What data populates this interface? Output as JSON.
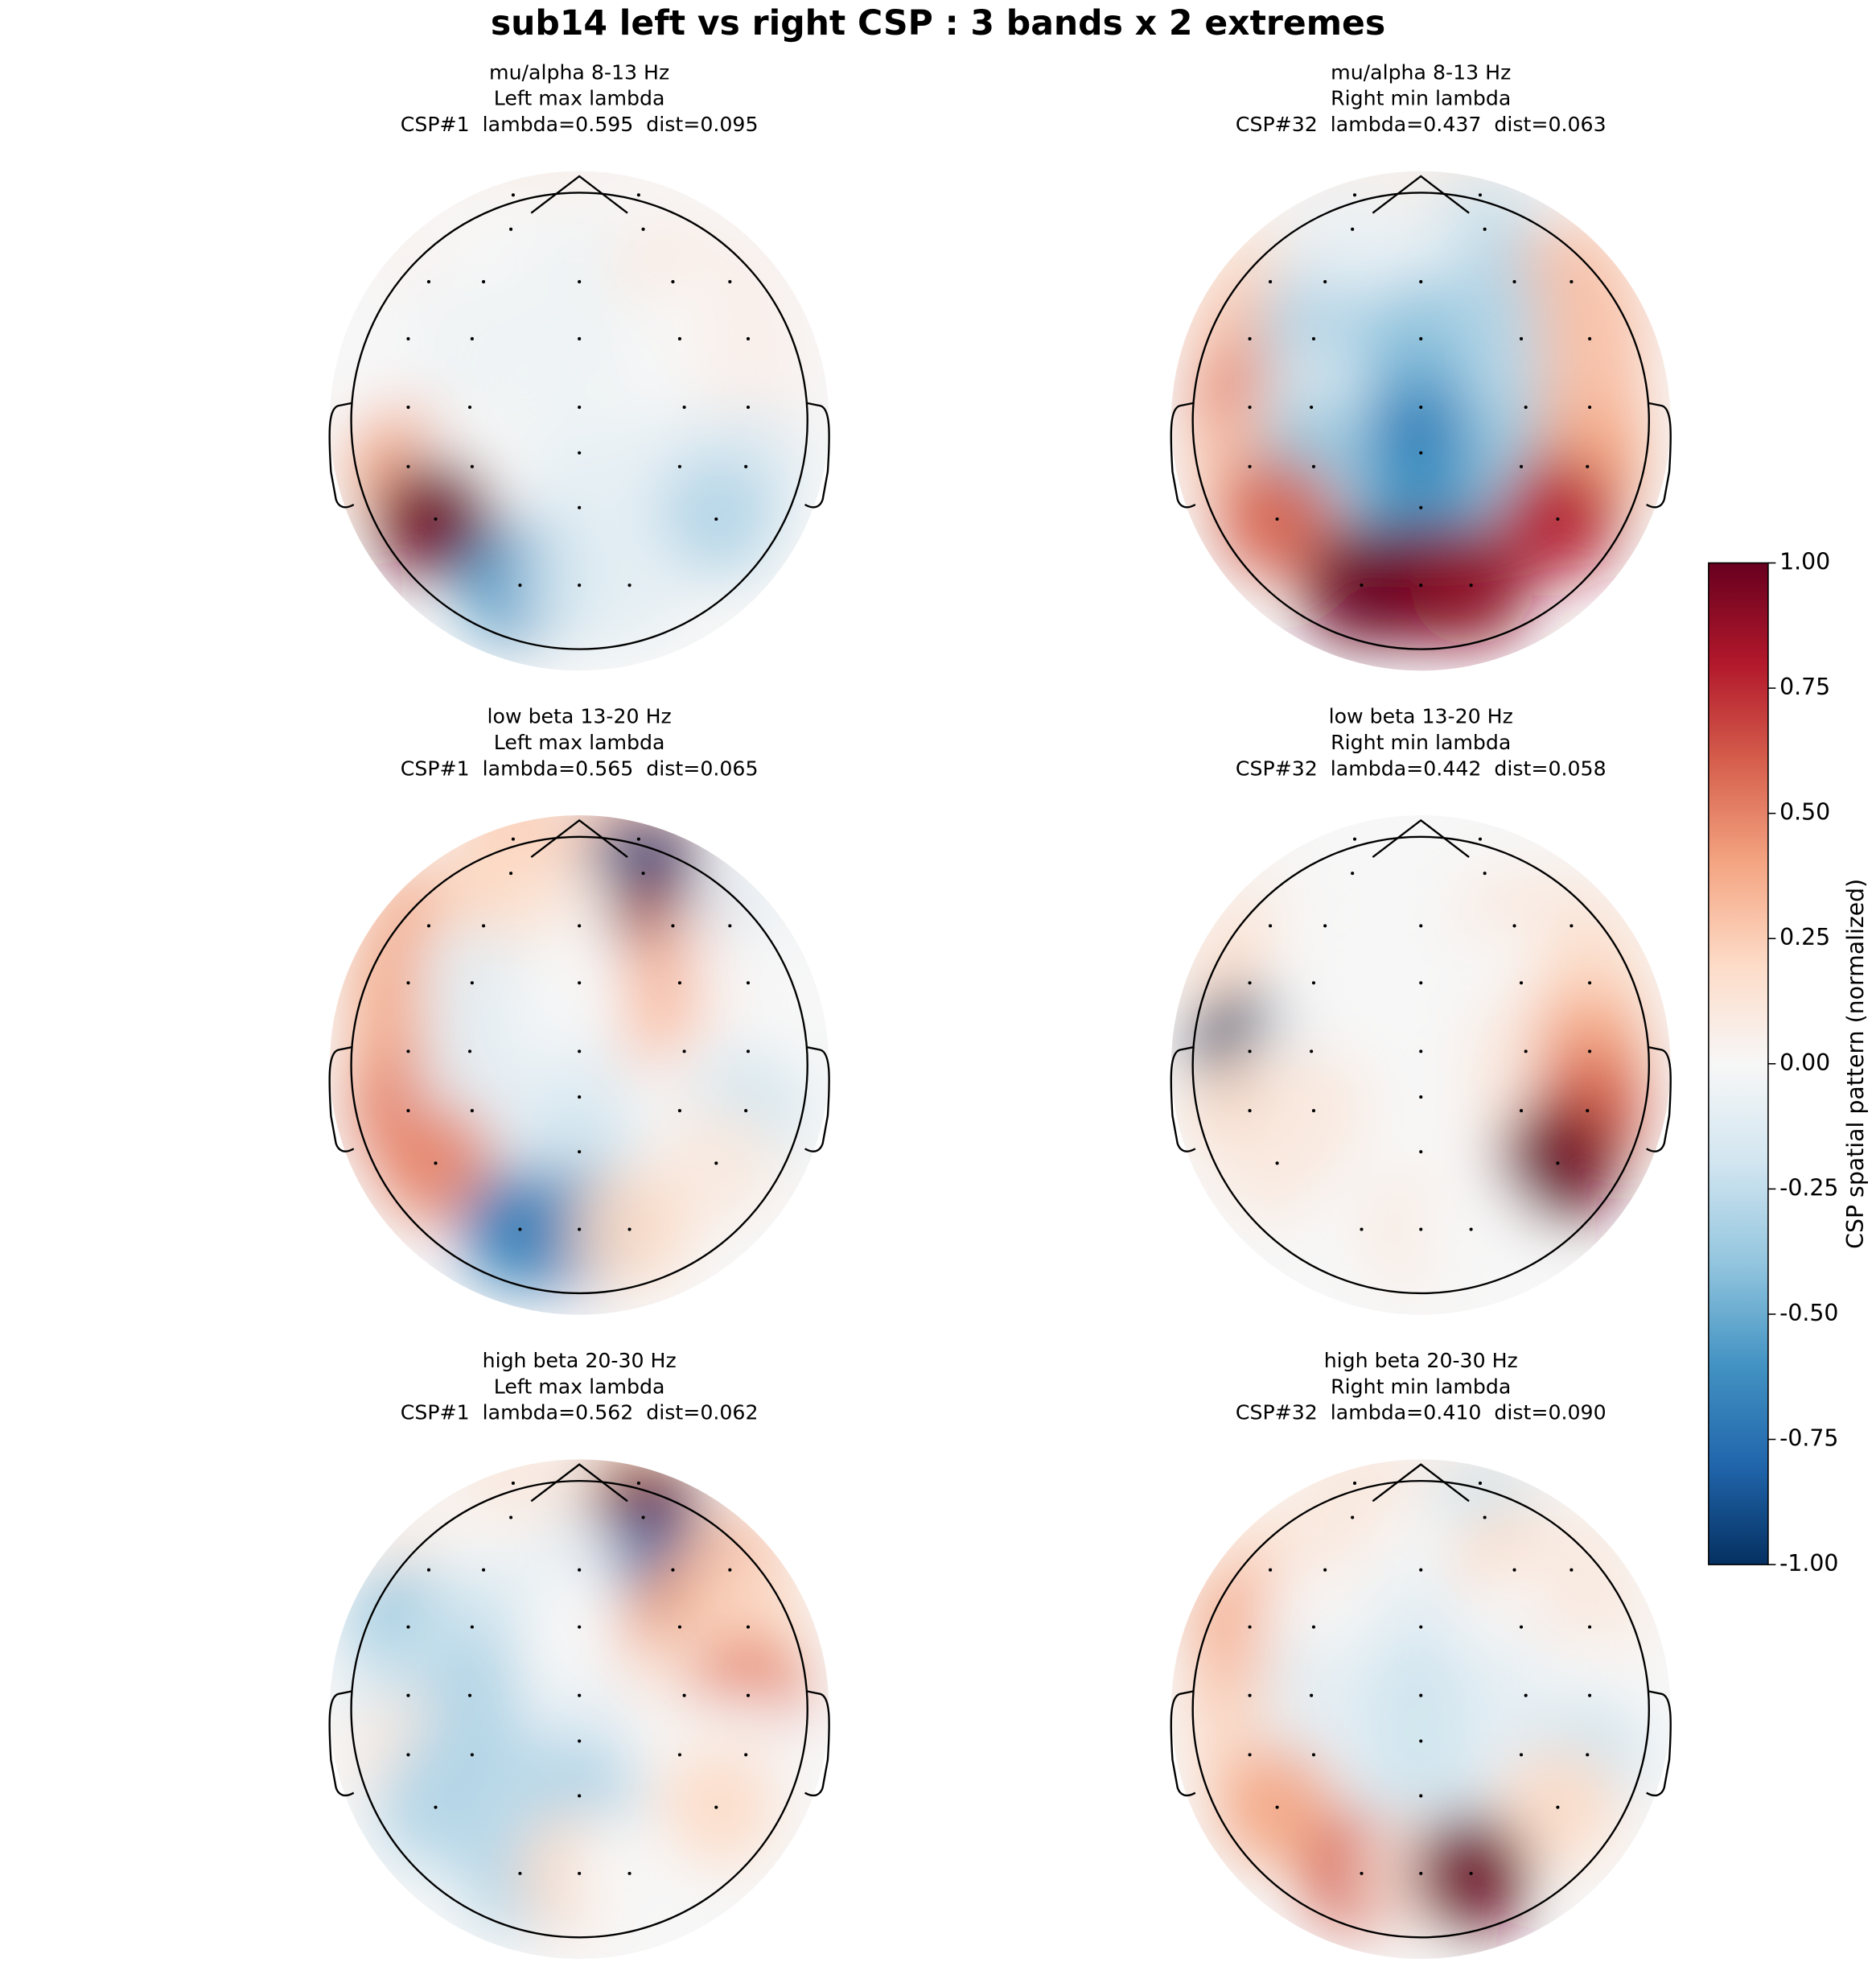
{
  "title": "sub14 left vs right CSP : 3 bands x 2 extremes",
  "chart_data": [
    {
      "type": "topomap",
      "title_lines": [
        "mu/alpha 8-13 Hz",
        "Left max lambda",
        "CSP#1  lambda=0.595  dist=0.095"
      ],
      "values": [
        0.1,
        0.05,
        0,
        0,
        0.05,
        0,
        -0.05,
        0.1,
        0.05,
        0,
        -0.05,
        -0.05,
        0,
        0.05,
        0,
        -0.05,
        -0.05,
        0,
        0.05,
        -0.05,
        0.4,
        0,
        -0.1,
        -0.15,
        -0.1,
        1.0,
        -0.3,
        -0.6,
        -0.2,
        -0.1
      ]
    },
    {
      "type": "topomap",
      "title_lines": [
        "mu/alpha 8-13 Hz",
        "Right min lambda",
        "CSP#32  lambda=0.437  dist=0.063"
      ],
      "values": [
        0.1,
        0.1,
        -0.05,
        -0.2,
        0.2,
        -0.1,
        -0.1,
        -0.3,
        0.3,
        0.3,
        -0.3,
        -0.4,
        -0.3,
        0.3,
        0.5,
        -0.2,
        -0.5,
        -0.3,
        0.3,
        -0.7,
        0.3,
        -0.4,
        -0.4,
        0.4,
        -0.6,
        0.6,
        0.8,
        1.0,
        1.0,
        0.9
      ]
    },
    {
      "type": "topomap",
      "title_lines": [
        "low beta 13-20 Hz",
        "Left max lambda",
        "CSP#1  lambda=0.565  dist=0.065"
      ],
      "values": [
        0.3,
        0.3,
        0.2,
        -0.9,
        0.4,
        0.2,
        0.1,
        0.9,
        -0.1,
        0.4,
        -0.1,
        0,
        0.3,
        0,
        0.4,
        -0.1,
        0,
        0.3,
        0,
        -0.1,
        0.5,
        -0.1,
        0,
        -0.2,
        -0.2,
        0.5,
        0.1,
        -0.7,
        -0.7,
        0.2
      ]
    },
    {
      "type": "topomap",
      "title_lines": [
        "low beta 13-20 Hz",
        "Right min lambda",
        "CSP#32  lambda=0.442  dist=0.058"
      ],
      "values": [
        0,
        0,
        0,
        0,
        0.1,
        0,
        0,
        0.1,
        0.1,
        0.2,
        0,
        0,
        0,
        0.2,
        -1.0,
        0,
        0,
        0.1,
        0.4,
        0,
        0.2,
        0.1,
        0.1,
        0.6,
        0,
        0.1,
        1.0,
        0,
        0.1,
        0
      ]
    },
    {
      "type": "topomap",
      "title_lines": [
        "high beta 20-30 Hz",
        "Left max lambda",
        "CSP#1  lambda=0.562  dist=0.062"
      ],
      "values": [
        0.1,
        0.2,
        0.1,
        1.0,
        0.1,
        0,
        -0.1,
        -0.8,
        0.3,
        -0.4,
        -0.2,
        0,
        0.4,
        0.2,
        -0.2,
        -0.3,
        0,
        0.1,
        0.5,
        -0.1,
        0.1,
        -0.3,
        0,
        0,
        -0.3,
        -0.3,
        0.2,
        -0.3,
        0.2,
        0
      ]
    },
    {
      "type": "topomap",
      "title_lines": [
        "high beta 20-30 Hz",
        "Right min lambda",
        "CSP#32  lambda=0.410  dist=0.090"
      ],
      "values": [
        0.1,
        0.1,
        0.1,
        -0.2,
        0.2,
        0.1,
        0,
        0.2,
        0.1,
        0.4,
        0,
        -0.1,
        0,
        0.1,
        0.3,
        -0.1,
        -0.2,
        -0.1,
        0,
        -0.2,
        0.2,
        -0.1,
        -0.1,
        -0.2,
        -0.2,
        0.4,
        0.2,
        0.6,
        0.1,
        1.0
      ]
    }
  ],
  "colorbar": {
    "label": "CSP spatial pattern (normalized)",
    "colormap": "RdBu_r",
    "lim": [
      -1,
      1
    ],
    "ticks": [
      {
        "value": 1,
        "label": "1.00"
      },
      {
        "value": 0.75,
        "label": "0.75"
      },
      {
        "value": 0.5,
        "label": "0.50"
      },
      {
        "value": 0.25,
        "label": "0.25"
      },
      {
        "value": 0,
        "label": "0.00"
      },
      {
        "value": -0.25,
        "label": "-0.25"
      },
      {
        "value": -0.5,
        "label": "-0.50"
      },
      {
        "value": -0.75,
        "label": "-0.75"
      },
      {
        "value": -1,
        "label": "-1.00"
      }
    ]
  }
}
